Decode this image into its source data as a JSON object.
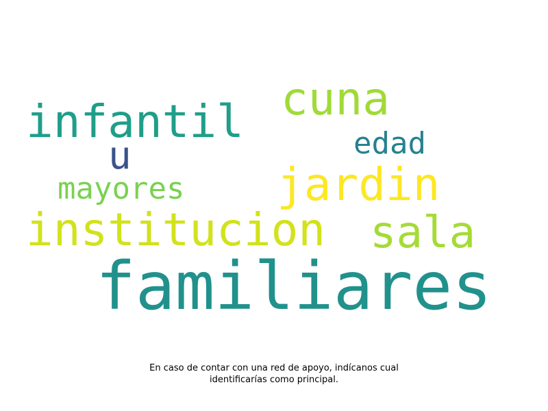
{
  "word_cloud": {
    "words": [
      {
        "key": "familiares",
        "text": "familiares",
        "color": "#21918c"
      },
      {
        "key": "institucion",
        "text": "institucion",
        "color": "#d2e21b"
      },
      {
        "key": "infantil",
        "text": "infantil",
        "color": "#1f9e89"
      },
      {
        "key": "cuna",
        "text": "cuna",
        "color": "#a0da39"
      },
      {
        "key": "jardin",
        "text": "jardin",
        "color": "#fde725"
      },
      {
        "key": "sala",
        "text": "sala",
        "color": "#a5db36"
      },
      {
        "key": "mayores",
        "text": "mayores",
        "color": "#7ad151"
      },
      {
        "key": "edad",
        "text": "edad",
        "color": "#26828e"
      },
      {
        "key": "u",
        "text": "u",
        "color": "#3b528b"
      }
    ]
  },
  "caption": {
    "line1": "En caso de contar con una red de apoyo, indícanos cual",
    "line2": "identificarías como principal."
  }
}
